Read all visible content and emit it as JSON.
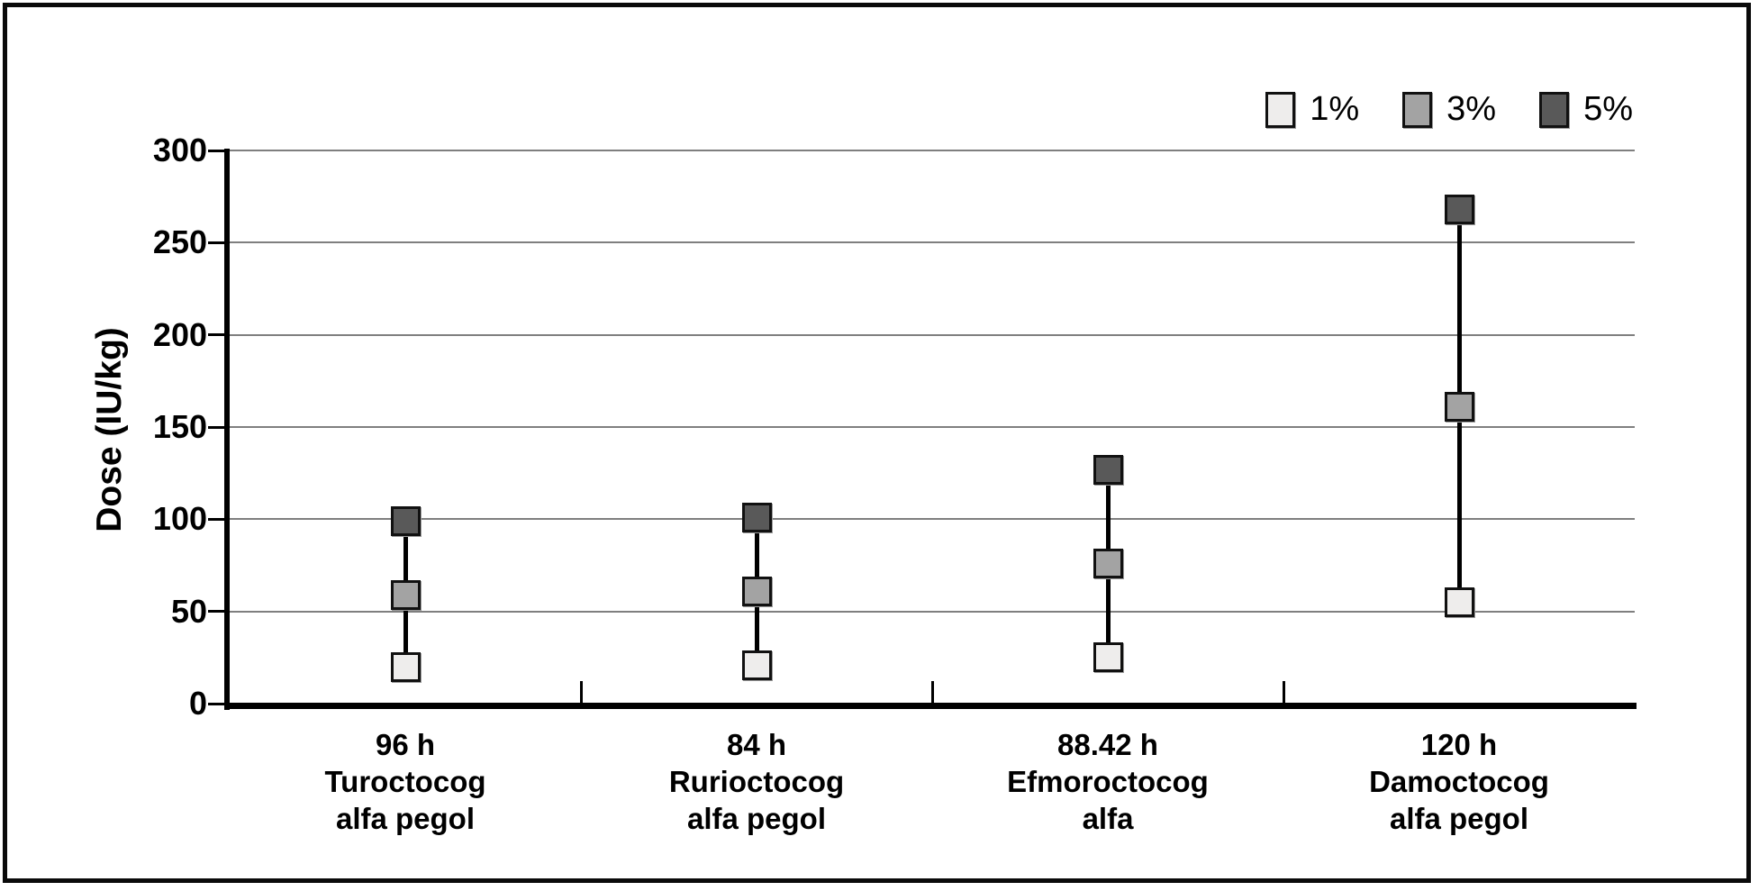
{
  "figure": {
    "background": "#ffffff",
    "frame_color": "#0a0a0a"
  },
  "legend": {
    "position": "top-right",
    "items": [
      {
        "label": "1%",
        "color": "#eeedec"
      },
      {
        "label": "3%",
        "color": "#a3a3a3"
      },
      {
        "label": "5%",
        "color": "#595959"
      }
    ]
  },
  "chart_data": {
    "type": "scatter",
    "title": "",
    "xlabel": "",
    "ylabel": "Dose (IU/kg)",
    "ylim": [
      0,
      300
    ],
    "yticks": [
      0,
      50,
      100,
      150,
      200,
      250,
      300
    ],
    "grid": true,
    "marker": "square",
    "connector": true,
    "legend_position": "top-right",
    "categories": [
      {
        "lines": [
          "96 h",
          "Turoctocog",
          "alfa pegol"
        ]
      },
      {
        "lines": [
          "84 h",
          "Rurioctocog",
          "alfa pegol"
        ]
      },
      {
        "lines": [
          "88.42 h",
          "Efmoroctocog",
          "alfa"
        ]
      },
      {
        "lines": [
          "120 h",
          "Damoctocog",
          "alfa pegol"
        ]
      }
    ],
    "series": [
      {
        "name": "1%",
        "color": "#eeedec",
        "values": [
          20,
          21,
          25,
          55
        ]
      },
      {
        "name": "3%",
        "color": "#a3a3a3",
        "values": [
          59,
          61,
          76,
          161
        ]
      },
      {
        "name": "5%",
        "color": "#595959",
        "values": [
          99,
          101,
          127,
          268
        ]
      }
    ]
  }
}
